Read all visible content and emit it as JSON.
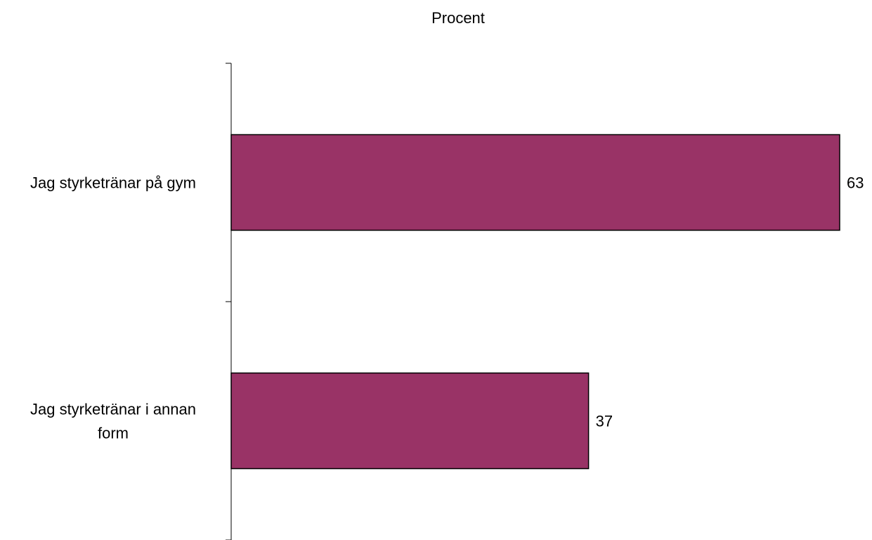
{
  "chart_data": {
    "type": "bar",
    "orientation": "horizontal",
    "title": "Procent",
    "categories": [
      [
        "Jag styrketränar på gym"
      ],
      [
        "Jag styrketränar i annan",
        "form"
      ]
    ],
    "values": [
      63,
      37
    ],
    "data_labels": [
      "63",
      "37"
    ],
    "bar_color": "#993366",
    "xlim": [
      0,
      63
    ],
    "grid": false,
    "legend": "none"
  }
}
